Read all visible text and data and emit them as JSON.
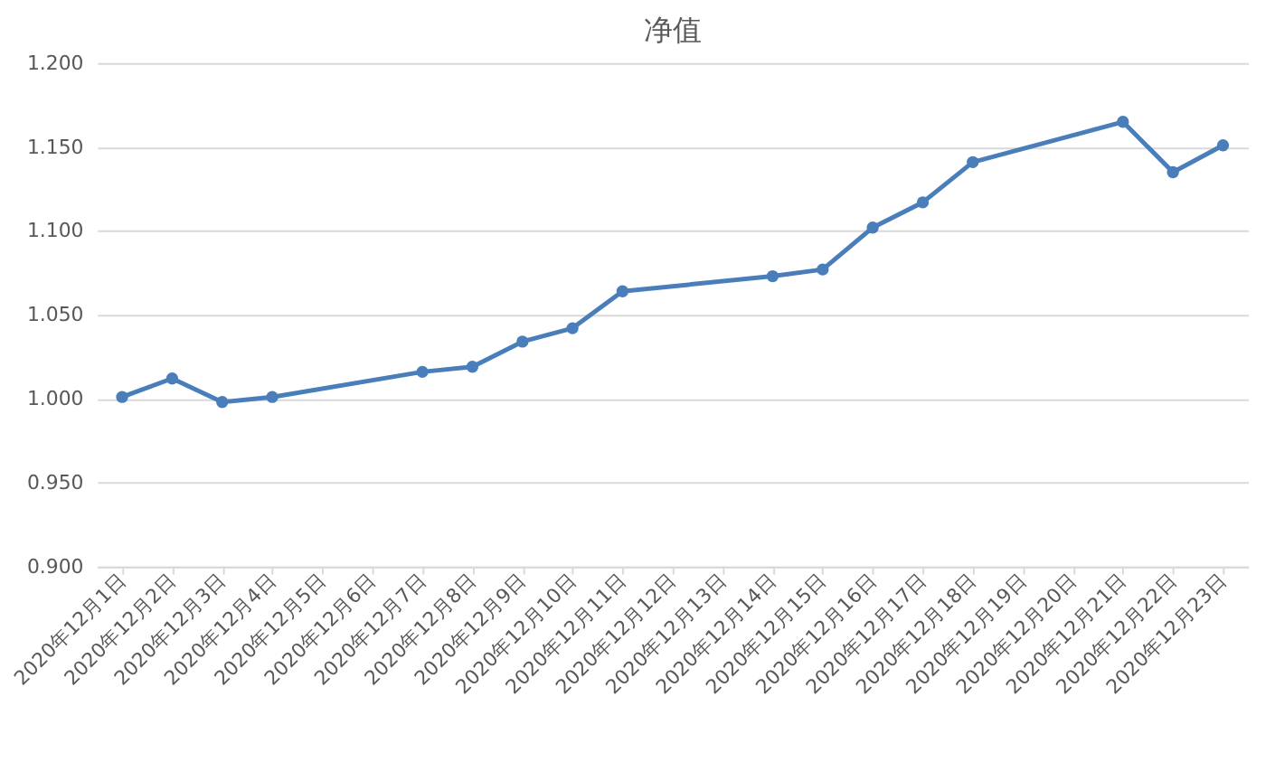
{
  "chart_data": {
    "type": "line",
    "title": "净值",
    "x": [
      "2020-12-01",
      "2020-12-02",
      "2020-12-03",
      "2020-12-04",
      "2020-12-07",
      "2020-12-08",
      "2020-12-09",
      "2020-12-10",
      "2020-12-11",
      "2020-12-14",
      "2020-12-15",
      "2020-12-16",
      "2020-12-17",
      "2020-12-18",
      "2020-12-21",
      "2020-12-22",
      "2020-12-23"
    ],
    "series": [
      {
        "color": "#4a7ebb",
        "values": [
          1.001,
          1.012,
          0.998,
          1.001,
          1.016,
          1.019,
          1.034,
          1.042,
          1.064,
          1.073,
          1.077,
          1.102,
          1.117,
          1.141,
          1.165,
          1.135,
          1.151
        ]
      }
    ],
    "xlim": [
      "2020-11-30T12:00",
      "2020-12-23T12:00"
    ],
    "xticks": [
      {
        "value": "2020-12-01",
        "label": "2020年12月1日"
      },
      {
        "value": "2020-12-02",
        "label": "2020年12月2日"
      },
      {
        "value": "2020-12-03",
        "label": "2020年12月3日"
      },
      {
        "value": "2020-12-04",
        "label": "2020年12月4日"
      },
      {
        "value": "2020-12-05",
        "label": "2020年12月5日"
      },
      {
        "value": "2020-12-06",
        "label": "2020年12月6日"
      },
      {
        "value": "2020-12-07",
        "label": "2020年12月7日"
      },
      {
        "value": "2020-12-08",
        "label": "2020年12月8日"
      },
      {
        "value": "2020-12-09",
        "label": "2020年12月9日"
      },
      {
        "value": "2020-12-10",
        "label": "2020年12月10日"
      },
      {
        "value": "2020-12-11",
        "label": "2020年12月11日"
      },
      {
        "value": "2020-12-12",
        "label": "2020年12月12日"
      },
      {
        "value": "2020-12-13",
        "label": "2020年12月13日"
      },
      {
        "value": "2020-12-14",
        "label": "2020年12月14日"
      },
      {
        "value": "2020-12-15",
        "label": "2020年12月15日"
      },
      {
        "value": "2020-12-16",
        "label": "2020年12月16日"
      },
      {
        "value": "2020-12-17",
        "label": "2020年12月17日"
      },
      {
        "value": "2020-12-18",
        "label": "2020年12月18日"
      },
      {
        "value": "2020-12-19",
        "label": "2020年12月19日"
      },
      {
        "value": "2020-12-20",
        "label": "2020年12月20日"
      },
      {
        "value": "2020-12-21",
        "label": "2020年12月21日"
      },
      {
        "value": "2020-12-22",
        "label": "2020年12月22日"
      },
      {
        "value": "2020-12-23",
        "label": "2020年12月23日"
      }
    ],
    "ylim": [
      0.9,
      1.2
    ],
    "yticks": [
      {
        "value": 0.9,
        "label": "0.900"
      },
      {
        "value": 0.95,
        "label": "0.950"
      },
      {
        "value": 1.0,
        "label": "1.000"
      },
      {
        "value": 1.05,
        "label": "1.050"
      },
      {
        "value": 1.1,
        "label": "1.100"
      },
      {
        "value": 1.15,
        "label": "1.150"
      },
      {
        "value": 1.2,
        "label": "1.200"
      }
    ],
    "grid": "y",
    "marker": "circle",
    "line_style": "solid"
  }
}
